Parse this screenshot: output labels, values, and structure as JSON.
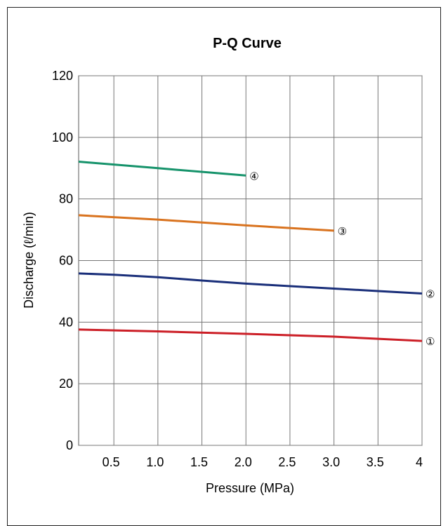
{
  "chart_data": {
    "type": "line",
    "title": "P-Q Curve",
    "xlabel": "Pressure (MPa)",
    "ylabel": "Discharge (ℓ/min)",
    "xlim": [
      0.1,
      4.0
    ],
    "ylim": [
      0,
      120
    ],
    "x_ticks": [
      {
        "value": 0.5,
        "label": "0.5"
      },
      {
        "value": 1.0,
        "label": "1.0"
      },
      {
        "value": 1.5,
        "label": "1.5"
      },
      {
        "value": 2.0,
        "label": "2.0"
      },
      {
        "value": 2.5,
        "label": "2.5"
      },
      {
        "value": 3.0,
        "label": "3.0"
      },
      {
        "value": 3.5,
        "label": "3.5"
      },
      {
        "value": 4.0,
        "label": "4"
      }
    ],
    "y_ticks": [
      {
        "value": 0,
        "label": "0"
      },
      {
        "value": 20,
        "label": "20"
      },
      {
        "value": 40,
        "label": "40"
      },
      {
        "value": 60,
        "label": "60"
      },
      {
        "value": 80,
        "label": "80"
      },
      {
        "value": 100,
        "label": "100"
      },
      {
        "value": 120,
        "label": "120"
      }
    ],
    "grid": true,
    "series": [
      {
        "label": "①",
        "color": "#cc1f27",
        "points": [
          [
            0.1,
            37.6
          ],
          [
            1.0,
            37.0
          ],
          [
            2.0,
            36.2
          ],
          [
            3.0,
            35.3
          ],
          [
            4.0,
            33.9
          ]
        ]
      },
      {
        "label": "②",
        "color": "#1a2f7a",
        "points": [
          [
            0.1,
            55.8
          ],
          [
            0.5,
            55.4
          ],
          [
            1.0,
            54.6
          ],
          [
            1.5,
            53.5
          ],
          [
            2.0,
            52.5
          ],
          [
            2.5,
            51.7
          ],
          [
            3.0,
            50.9
          ],
          [
            3.5,
            50.1
          ],
          [
            4.0,
            49.3
          ]
        ]
      },
      {
        "label": "③",
        "color": "#d9731f",
        "points": [
          [
            0.1,
            74.7
          ],
          [
            1.0,
            73.3
          ],
          [
            2.0,
            71.4
          ],
          [
            3.0,
            69.7
          ]
        ]
      },
      {
        "label": "④",
        "color": "#16936b",
        "points": [
          [
            0.1,
            92.1
          ],
          [
            1.0,
            90.0
          ],
          [
            2.0,
            87.6
          ]
        ]
      }
    ]
  }
}
